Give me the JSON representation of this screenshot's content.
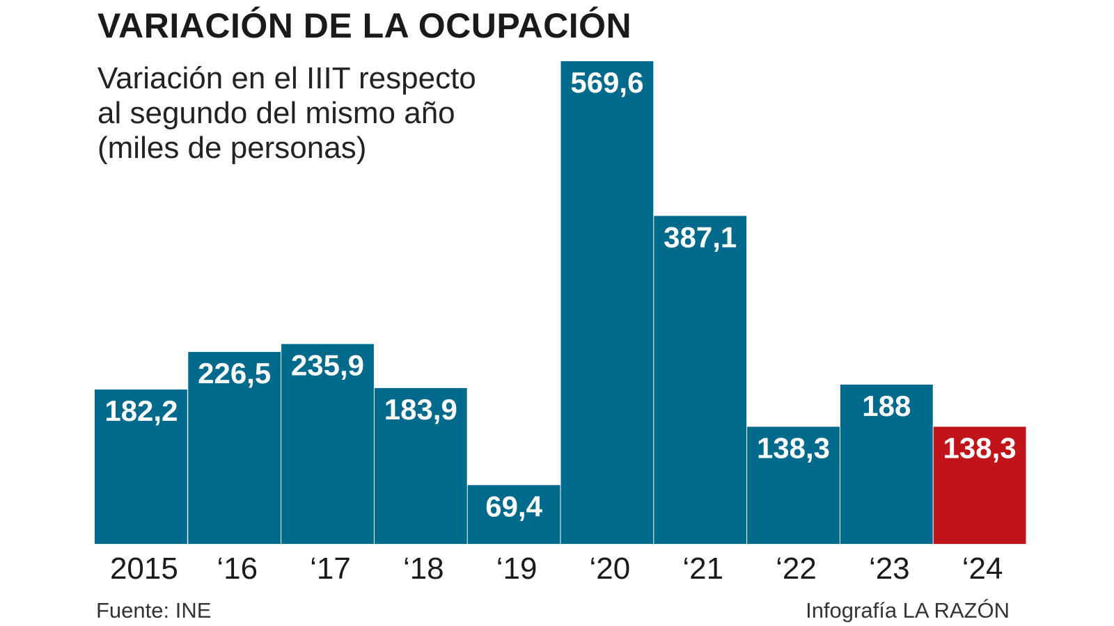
{
  "title": "VARIACIÓN DE LA OCUPACIÓN",
  "subtitle_lines": [
    "Variación en el IIIT respecto",
    "al segundo del mismo año",
    "(miles de personas)"
  ],
  "source": "Fuente: INE",
  "credit": "Infografía LA RAZÓN",
  "colors": {
    "bar": "#006a8c",
    "highlight": "#c0141a"
  },
  "chart_data": {
    "type": "bar",
    "title": "VARIACIÓN DE LA OCUPACIÓN",
    "ylabel": "Variación en el IIIT respecto al segundo del mismo año (miles de personas)",
    "xlabel": "",
    "categories": [
      "2015",
      "‘16",
      "‘17",
      "‘18",
      "‘19",
      "‘20",
      "‘21",
      "‘22",
      "‘23",
      "‘24"
    ],
    "values": [
      182.2,
      226.5,
      235.9,
      183.9,
      69.4,
      569.6,
      387.1,
      138.3,
      188,
      138.3
    ],
    "value_labels": [
      "182,2",
      "226,5",
      "235,9",
      "183,9",
      "69,4",
      "569,6",
      "387,1",
      "138,3",
      "188",
      "138,3"
    ],
    "highlight_index": 9,
    "ylim": [
      0,
      569.6
    ],
    "grid": false,
    "legend": "none"
  }
}
